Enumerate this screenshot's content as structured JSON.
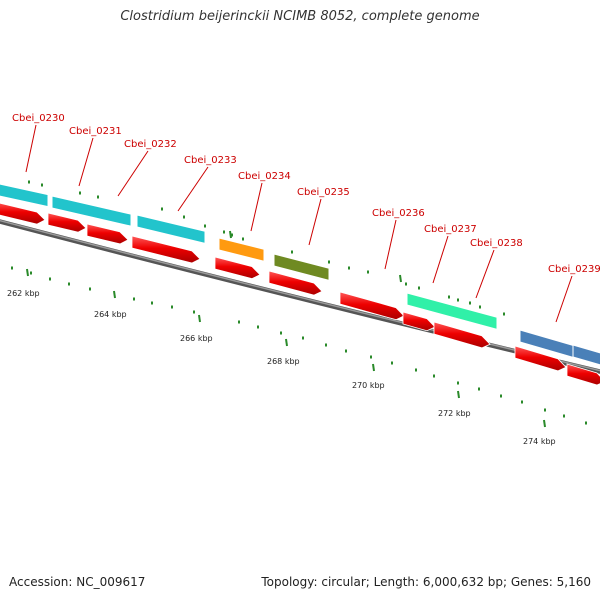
{
  "header": {
    "title": "Clostridium beijerinckii NCIMB 8052, complete genome"
  },
  "footer": {
    "accession": "Accession: NC_009617",
    "stats": "Topology: circular; Length: 6,000,632 bp; Genes: 5,160"
  },
  "colors": {
    "backbone": "#7a7a7a",
    "tick": "#2a8a2a",
    "cds_forward": "#ee0000",
    "label": "#cc0000"
  },
  "scale": {
    "labels": [
      "262 kbp",
      "264 kbp",
      "266 kbp",
      "268 kbp",
      "270 kbp",
      "272 kbp",
      "274 kbp"
    ]
  },
  "genes": [
    {
      "id": "Cbei_0230",
      "color": "#22c4cc"
    },
    {
      "id": "Cbei_0231",
      "color": "#22c4cc"
    },
    {
      "id": "Cbei_0232",
      "color": "#22c4cc"
    },
    {
      "id": "Cbei_0233",
      "color": "#22c4cc"
    },
    {
      "id": "Cbei_0234",
      "color": "#ff9a10"
    },
    {
      "id": "Cbei_0235",
      "color": "#6f8a22"
    },
    {
      "id": "Cbei_0236",
      "color": null
    },
    {
      "id": "Cbei_0237",
      "color": "#30f0a8"
    },
    {
      "id": "Cbei_0238",
      "color": "#30f0a8"
    },
    {
      "id": "Cbei_0239",
      "color": "#4a80b8"
    }
  ]
}
